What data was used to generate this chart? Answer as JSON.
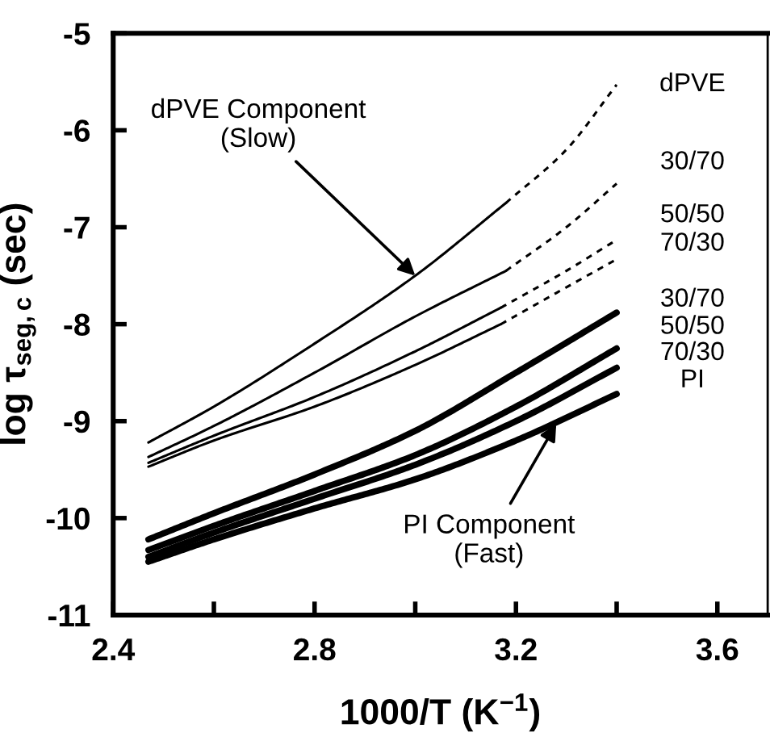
{
  "chart_data": {
    "type": "line",
    "xlabel": "1000/T (K$^{−1}$)",
    "ylabel": "log τ$_{seg,c}$ (sec)",
    "xlim": [
      2.4,
      3.7
    ],
    "ylim": [
      -11,
      -5
    ],
    "xticks": [
      2.4,
      {
        "value": 2.6,
        "label": null
      },
      2.8,
      {
        "value": 3.0,
        "label": null
      },
      3.2,
      {
        "value": 3.4,
        "label": null
      },
      3.6
    ],
    "yticks": [
      -11,
      -10,
      -9,
      -8,
      -7,
      -6,
      -5
    ],
    "grid": false,
    "legend": false,
    "marker": "none",
    "series": [
      {
        "color": "#000000",
        "line_style": "solid",
        "x": [
          2.47,
          2.6,
          2.8,
          3.0,
          3.18
        ],
        "values": [
          -9.22,
          -8.85,
          -8.2,
          -7.5,
          -6.75
        ]
      },
      {
        "color": "#000000",
        "line_style": "dashed",
        "x": [
          3.18,
          3.3,
          3.4
        ],
        "values": [
          -6.75,
          -6.2,
          -5.53
        ]
      },
      {
        "color": "#000000",
        "line_style": "solid",
        "x": [
          2.47,
          2.6,
          2.8,
          3.0,
          3.18
        ],
        "values": [
          -9.37,
          -9.05,
          -8.5,
          -7.92,
          -7.45
        ]
      },
      {
        "color": "#000000",
        "line_style": "dashed",
        "x": [
          3.18,
          3.3,
          3.4
        ],
        "values": [
          -7.45,
          -7.0,
          -6.55
        ]
      },
      {
        "color": "#000000",
        "line_style": "solid",
        "x": [
          2.47,
          2.6,
          2.8,
          3.0,
          3.17
        ],
        "values": [
          -9.43,
          -9.15,
          -8.75,
          -8.28,
          -7.83
        ]
      },
      {
        "color": "#000000",
        "line_style": "dashed",
        "x": [
          3.17,
          3.3,
          3.4
        ],
        "values": [
          -7.83,
          -7.45,
          -7.13
        ]
      },
      {
        "color": "#000000",
        "line_style": "solid",
        "x": [
          2.47,
          2.6,
          2.8,
          3.0,
          3.17
        ],
        "values": [
          -9.47,
          -9.2,
          -8.85,
          -8.42,
          -8.0
        ]
      },
      {
        "color": "#000000",
        "line_style": "dashed",
        "x": [
          3.17,
          3.3,
          3.4
        ],
        "values": [
          -8.0,
          -7.62,
          -7.33
        ]
      },
      {
        "color": "#000000",
        "line_style": "solid",
        "x": [
          2.47,
          2.6,
          2.8,
          3.0,
          3.2,
          3.4
        ],
        "values": [
          -10.22,
          -9.95,
          -9.55,
          -9.1,
          -8.5,
          -7.88
        ]
      },
      {
        "color": "#000000",
        "line_style": "solid",
        "x": [
          2.47,
          2.6,
          2.8,
          3.0,
          3.2,
          3.4
        ],
        "values": [
          -10.33,
          -10.08,
          -9.72,
          -9.35,
          -8.85,
          -8.25
        ]
      },
      {
        "color": "#000000",
        "line_style": "solid",
        "x": [
          2.47,
          2.6,
          2.8,
          3.0,
          3.2,
          3.4
        ],
        "values": [
          -10.4,
          -10.15,
          -9.8,
          -9.45,
          -9.0,
          -8.45
        ]
      },
      {
        "color": "#000000",
        "line_style": "solid",
        "x": [
          2.47,
          2.6,
          2.8,
          3.0,
          3.2,
          3.4
        ],
        "values": [
          -10.45,
          -10.22,
          -9.9,
          -9.6,
          -9.2,
          -8.72
        ]
      }
    ],
    "annotations": [
      {
        "text": "dPVE Component\n(Slow)",
        "x": 3.0,
        "y": -7.5
      },
      {
        "text": "PI Component\n(Fast)",
        "x": 3.28,
        "y": -9.03
      },
      "dPVE",
      "30/70",
      "50/50",
      "70/30",
      "30/70",
      "50/50",
      "70/30",
      "PI"
    ]
  }
}
